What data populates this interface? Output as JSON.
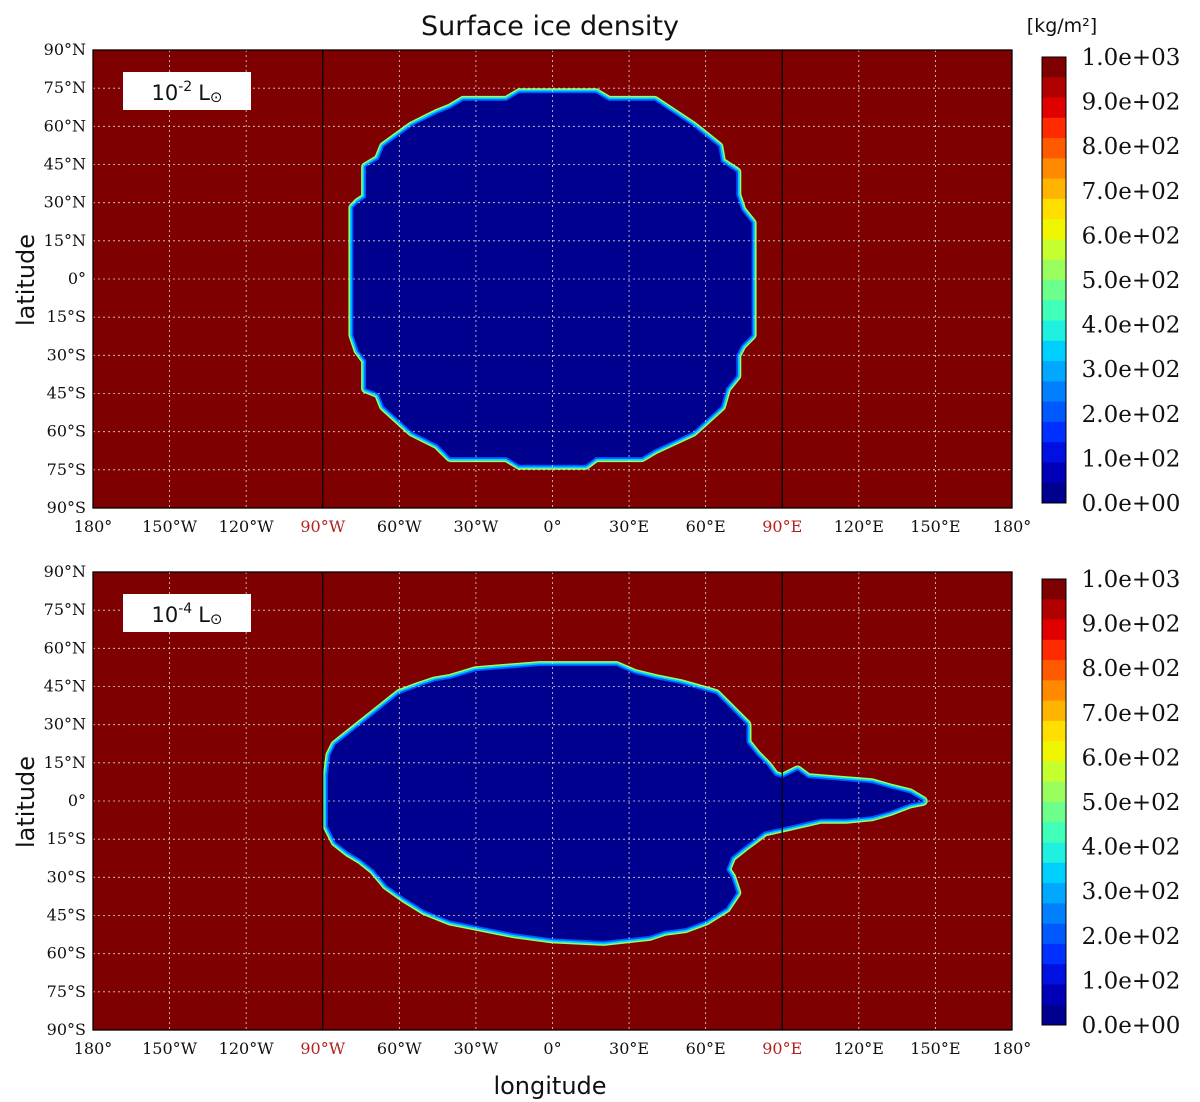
{
  "chart_data": {
    "type": "heatmap",
    "title": "Surface ice density",
    "xlabel": "longitude",
    "ylabel": "latitude",
    "xlim": [
      -180,
      180
    ],
    "ylim": [
      -90,
      90
    ],
    "x_ticks": [
      {
        "value": -180,
        "label": "180°"
      },
      {
        "value": -150,
        "label": "150°W"
      },
      {
        "value": -120,
        "label": "120°W"
      },
      {
        "value": -90,
        "label": "90°W",
        "highlight": true
      },
      {
        "value": -60,
        "label": "60°W"
      },
      {
        "value": -30,
        "label": "30°W"
      },
      {
        "value": 0,
        "label": "0°"
      },
      {
        "value": 30,
        "label": "30°E"
      },
      {
        "value": 60,
        "label": "60°E"
      },
      {
        "value": 90,
        "label": "90°E",
        "highlight": true
      },
      {
        "value": 120,
        "label": "120°E"
      },
      {
        "value": 150,
        "label": "150°E"
      },
      {
        "value": 180,
        "label": "180°"
      }
    ],
    "y_ticks": [
      {
        "value": 90,
        "label": "90°N"
      },
      {
        "value": 75,
        "label": "75°N"
      },
      {
        "value": 60,
        "label": "60°N"
      },
      {
        "value": 45,
        "label": "45°N"
      },
      {
        "value": 30,
        "label": "30°N"
      },
      {
        "value": 15,
        "label": "15°N"
      },
      {
        "value": 0,
        "label": "0°"
      },
      {
        "value": -15,
        "label": "15°S"
      },
      {
        "value": -30,
        "label": "30°S"
      },
      {
        "value": -45,
        "label": "45°S"
      },
      {
        "value": -60,
        "label": "60°S"
      },
      {
        "value": -75,
        "label": "75°S"
      },
      {
        "value": -90,
        "label": "90°S"
      }
    ],
    "grid": true,
    "meridian_lines": [
      -90,
      90
    ],
    "colorbar": {
      "unit": "[kg/m²]",
      "range": [
        0,
        1000
      ],
      "tick_labels": [
        "1.0e+03",
        "9.0e+02",
        "8.0e+02",
        "7.0e+02",
        "6.0e+02",
        "5.0e+02",
        "4.0e+02",
        "3.0e+02",
        "2.0e+02",
        "1.0e+02",
        "0.0e+00"
      ],
      "levels_top_to_bottom": [
        "#7f0000",
        "#b00000",
        "#e00000",
        "#ff2a00",
        "#ff5a00",
        "#ff8a00",
        "#ffb400",
        "#ffde00",
        "#f0f500",
        "#c6ff30",
        "#9aff5e",
        "#6dff8b",
        "#40ffb8",
        "#20f0e0",
        "#00d0ff",
        "#00a8ff",
        "#0080ff",
        "#0058ff",
        "#0030ff",
        "#0010e0",
        "#0000b8",
        "#00008f"
      ]
    },
    "panels": [
      {
        "label_base": "10",
        "label_exp": "-2",
        "label_unit": "L",
        "label_sun": "⊙",
        "background_value": 1000,
        "region_value": 0,
        "region_boundary": [
          [
            -13,
            73
          ],
          [
            17,
            73
          ],
          [
            22,
            70
          ],
          [
            40,
            70
          ],
          [
            55,
            60
          ],
          [
            65,
            52
          ],
          [
            66,
            46
          ],
          [
            72,
            42
          ],
          [
            72,
            33
          ],
          [
            74,
            27
          ],
          [
            78,
            22
          ],
          [
            78,
            -22
          ],
          [
            74,
            -26
          ],
          [
            72,
            -30
          ],
          [
            72,
            -38
          ],
          [
            68,
            -43
          ],
          [
            66,
            -50
          ],
          [
            55,
            -60
          ],
          [
            40,
            -67
          ],
          [
            35,
            -70
          ],
          [
            17,
            -70
          ],
          [
            13,
            -73
          ],
          [
            -13,
            -73
          ],
          [
            -18,
            -70
          ],
          [
            -40,
            -70
          ],
          [
            -45,
            -65
          ],
          [
            -55,
            -60
          ],
          [
            -66,
            -50
          ],
          [
            -68,
            -45
          ],
          [
            -73,
            -43
          ],
          [
            -73,
            -32
          ],
          [
            -76,
            -28
          ],
          [
            -78,
            -22
          ],
          [
            -78,
            28
          ],
          [
            -76,
            30
          ],
          [
            -73,
            32
          ],
          [
            -73,
            44
          ],
          [
            -68,
            47
          ],
          [
            -66,
            52
          ],
          [
            -55,
            60
          ],
          [
            -45,
            65
          ],
          [
            -40,
            67
          ],
          [
            -35,
            70
          ],
          [
            -18,
            70
          ]
        ]
      },
      {
        "label_base": "10",
        "label_exp": "-4",
        "label_unit": "L",
        "label_sun": "⊙",
        "background_value": 1000,
        "region_value": 0,
        "region_boundary": [
          [
            -40,
            48
          ],
          [
            -30,
            51
          ],
          [
            -5,
            53
          ],
          [
            25,
            53
          ],
          [
            32,
            50
          ],
          [
            40,
            48
          ],
          [
            50,
            46
          ],
          [
            57,
            44
          ],
          [
            64,
            42
          ],
          [
            68,
            38
          ],
          [
            72,
            34
          ],
          [
            76,
            30
          ],
          [
            76,
            23
          ],
          [
            80,
            18
          ],
          [
            84,
            14
          ],
          [
            87,
            10
          ],
          [
            90,
            9
          ],
          [
            96,
            12
          ],
          [
            100,
            9
          ],
          [
            112,
            8
          ],
          [
            125,
            7
          ],
          [
            132,
            5
          ],
          [
            140,
            3
          ],
          [
            145,
            0
          ],
          [
            140,
            -1
          ],
          [
            132,
            -4
          ],
          [
            125,
            -6
          ],
          [
            115,
            -7
          ],
          [
            105,
            -7
          ],
          [
            92,
            -10
          ],
          [
            83,
            -12
          ],
          [
            79,
            -15
          ],
          [
            75,
            -18
          ],
          [
            70,
            -22
          ],
          [
            68,
            -27
          ],
          [
            70,
            -30
          ],
          [
            72,
            -36
          ],
          [
            68,
            -42
          ],
          [
            60,
            -47
          ],
          [
            52,
            -50
          ],
          [
            44,
            -51
          ],
          [
            38,
            -53
          ],
          [
            20,
            -55
          ],
          [
            0,
            -54
          ],
          [
            -15,
            -52
          ],
          [
            -25,
            -50
          ],
          [
            -40,
            -47
          ],
          [
            -50,
            -43
          ],
          [
            -58,
            -38
          ],
          [
            -65,
            -33
          ],
          [
            -70,
            -27
          ],
          [
            -75,
            -23
          ],
          [
            -80,
            -20
          ],
          [
            -85,
            -16
          ],
          [
            -88,
            -10
          ],
          [
            -88,
            10
          ],
          [
            -87,
            18
          ],
          [
            -85,
            22
          ],
          [
            -80,
            26
          ],
          [
            -75,
            30
          ],
          [
            -70,
            34
          ],
          [
            -65,
            38
          ],
          [
            -60,
            42
          ],
          [
            -52,
            45
          ],
          [
            -46,
            47
          ]
        ]
      }
    ]
  }
}
